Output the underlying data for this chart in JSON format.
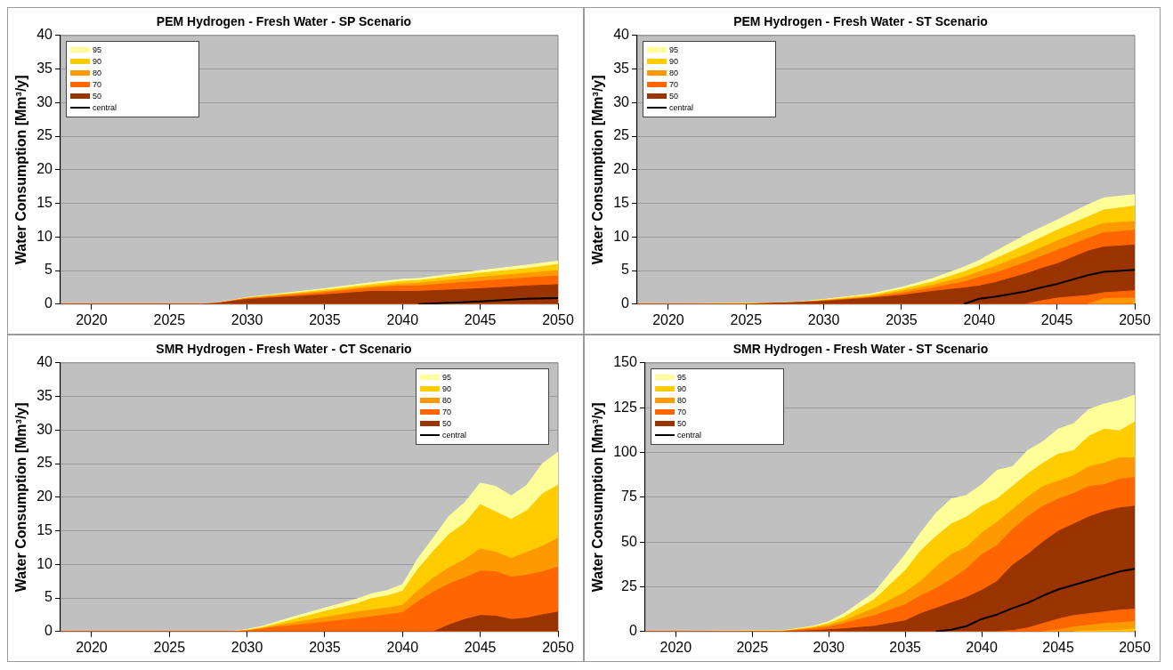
{
  "chart_data": [
    {
      "type": "area",
      "title": "PEM Hydrogen - Fresh Water - SP Scenario",
      "ylabel": "Water Consumption [Mm³/y]",
      "x": [
        2018,
        2027,
        2028,
        2030,
        2035,
        2038,
        2040,
        2041,
        2045,
        2048,
        2050
      ],
      "xlim": [
        2018,
        2050
      ],
      "xticks": [
        2020,
        2025,
        2030,
        2035,
        2040,
        2045,
        2050
      ],
      "ylim": [
        0,
        40
      ],
      "yticks": [
        0,
        5,
        10,
        15,
        20,
        25,
        30,
        35,
        40
      ],
      "grid": "y",
      "legend": "top left",
      "marker": "none",
      "line_style": "solid",
      "series": [
        {
          "name": "95",
          "type": "area",
          "color": "#ffff99",
          "values": [
            0,
            0,
            0.1,
            1.0,
            2.3,
            3.2,
            3.7,
            3.8,
            5.0,
            5.8,
            6.4
          ]
        },
        {
          "name": "90",
          "type": "area",
          "color": "#ffcc00",
          "values": [
            0,
            0,
            0.1,
            0.9,
            2.1,
            2.9,
            3.4,
            3.5,
            4.6,
            5.3,
            5.9
          ]
        },
        {
          "name": "80",
          "type": "area",
          "color": "#ff9900",
          "values": [
            0,
            0,
            0.1,
            0.9,
            1.9,
            2.6,
            3.0,
            3.1,
            4.0,
            4.6,
            5.0
          ]
        },
        {
          "name": "70",
          "type": "area",
          "color": "#ff6600",
          "values": [
            0,
            0,
            0.1,
            0.8,
            1.7,
            2.4,
            2.7,
            2.7,
            3.4,
            3.9,
            4.2
          ]
        },
        {
          "name": "50",
          "type": "area",
          "color": "#993300",
          "values": [
            0,
            0,
            0.1,
            0.7,
            1.4,
            1.9,
            1.9,
            1.9,
            2.3,
            2.7,
            2.9
          ]
        },
        {
          "name": "central",
          "type": "line",
          "color": "#000000",
          "values": [
            null,
            null,
            null,
            null,
            null,
            null,
            null,
            0,
            0.4,
            0.8,
            0.9
          ]
        }
      ]
    },
    {
      "type": "area",
      "title": "PEM Hydrogen - Fresh Water - ST Scenario",
      "ylabel": "Water Consumption [Mm³/y]",
      "x": [
        2018,
        2025,
        2028,
        2030,
        2033,
        2035,
        2037,
        2039,
        2040,
        2041,
        2043,
        2044,
        2045,
        2047,
        2048,
        2050
      ],
      "xlim": [
        2018,
        2050
      ],
      "xticks": [
        2020,
        2025,
        2030,
        2035,
        2040,
        2045,
        2050
      ],
      "ylim": [
        0,
        40
      ],
      "yticks": [
        0,
        5,
        10,
        15,
        20,
        25,
        30,
        35,
        40
      ],
      "grid": "y",
      "legend": "top left",
      "marker": "none",
      "line_style": "solid",
      "series": [
        {
          "name": "95",
          "type": "area",
          "color": "#ffff99",
          "values": [
            0,
            0.1,
            0.2,
            0.7,
            1.5,
            2.5,
            3.8,
            5.5,
            6.5,
            7.8,
            10.3,
            11.4,
            12.5,
            14.8,
            15.8,
            16.3
          ]
        },
        {
          "name": "90",
          "type": "area",
          "color": "#ffcc00",
          "values": [
            0,
            0.1,
            0.2,
            0.6,
            1.3,
            2.2,
            3.3,
            4.8,
            5.7,
            6.7,
            8.8,
            9.9,
            11.0,
            13.0,
            14.0,
            14.6
          ]
        },
        {
          "name": "80",
          "type": "area",
          "color": "#ff9900",
          "values": [
            0,
            0,
            0.2,
            0.5,
            1.1,
            1.9,
            2.8,
            4.0,
            4.8,
            5.6,
            7.4,
            8.4,
            9.4,
            11.2,
            12.0,
            12.3
          ]
        },
        {
          "name": "70",
          "type": "area",
          "color": "#ff6600",
          "values": [
            0,
            0,
            0.2,
            0.5,
            1.0,
            1.6,
            2.4,
            3.3,
            4.0,
            4.6,
            6.2,
            7.1,
            8.0,
            9.8,
            10.6,
            11.0
          ]
        },
        {
          "name": "50",
          "type": "area",
          "color": "#993300",
          "values": [
            0,
            0,
            0.2,
            0.4,
            0.9,
            1.3,
            1.9,
            2.4,
            2.7,
            3.2,
            4.5,
            5.3,
            6.0,
            7.9,
            8.5,
            8.8
          ]
        },
        {
          "type": "area",
          "color": "#fe6600",
          "values": [
            null,
            null,
            null,
            null,
            null,
            null,
            null,
            null,
            null,
            null,
            0,
            0.5,
            0.9,
            1.3,
            1.7,
            2.0
          ]
        },
        {
          "type": "area",
          "color": "#fe9900",
          "values": [
            null,
            null,
            null,
            null,
            null,
            null,
            null,
            null,
            null,
            null,
            null,
            null,
            null,
            0,
            0.8,
            0.9
          ]
        },
        {
          "name": "central",
          "type": "line",
          "color": "#000000",
          "values": [
            null,
            null,
            null,
            null,
            null,
            null,
            null,
            0,
            0.8,
            1.1,
            1.9,
            2.5,
            3.0,
            4.3,
            4.8,
            5.1
          ]
        }
      ]
    },
    {
      "type": "area",
      "title": "SMR Hydrogen - Fresh Water - CT Scenario",
      "ylabel": "Water Consumption [Mm³/y]",
      "x": [
        2018,
        2029,
        2030,
        2031,
        2032,
        2033,
        2035,
        2037,
        2038,
        2039,
        2040,
        2041,
        2042,
        2043,
        2044,
        2045,
        2046,
        2047,
        2048,
        2049,
        2050
      ],
      "xlim": [
        2018,
        2050
      ],
      "xticks": [
        2020,
        2025,
        2030,
        2035,
        2040,
        2045,
        2050
      ],
      "ylim": [
        0,
        40
      ],
      "yticks": [
        0,
        5,
        10,
        15,
        20,
        25,
        30,
        35,
        40
      ],
      "grid": "y",
      "legend": "top right",
      "marker": "none",
      "line_style": "solid",
      "series": [
        {
          "name": "95",
          "type": "area",
          "color": "#ffff99",
          "values": [
            0,
            0,
            0.3,
            0.8,
            1.5,
            2.2,
            3.5,
            4.8,
            5.6,
            6.1,
            7.0,
            10.9,
            14.0,
            17.2,
            19.2,
            22.1,
            21.6,
            20.2,
            21.8,
            25.0,
            26.7
          ]
        },
        {
          "name": "90",
          "type": "area",
          "color": "#ffcc00",
          "values": [
            0,
            0,
            0.2,
            0.6,
            1.2,
            1.8,
            3.0,
            4.1,
            4.9,
            5.3,
            6.0,
            9.3,
            12.0,
            14.5,
            16.1,
            18.9,
            17.8,
            16.7,
            18.0,
            20.5,
            21.8
          ]
        },
        {
          "name": "80",
          "type": "area",
          "color": "#ff9900",
          "values": [
            0,
            0,
            0.1,
            0.5,
            0.9,
            1.3,
            2.1,
            2.9,
            3.2,
            3.5,
            3.9,
            6.1,
            8.0,
            9.5,
            10.7,
            12.3,
            11.8,
            10.9,
            11.8,
            12.7,
            13.9
          ]
        },
        {
          "name": "70",
          "type": "area",
          "color": "#ff6600",
          "values": [
            0,
            0,
            0.1,
            0.4,
            0.7,
            0.9,
            1.4,
            1.9,
            2.2,
            2.5,
            2.8,
            4.5,
            5.9,
            7.1,
            8.0,
            9.0,
            8.9,
            8.1,
            8.4,
            8.9,
            9.6
          ]
        },
        {
          "name": "50",
          "type": "area",
          "color": "#993300",
          "values": [
            0,
            0,
            0,
            0,
            0,
            0,
            0,
            0,
            0,
            0,
            0,
            0,
            0,
            1.0,
            1.8,
            2.4,
            2.3,
            1.8,
            2.0,
            2.5,
            2.9
          ]
        },
        {
          "name": "central",
          "type": "line",
          "color": "#000000",
          "values": [
            null,
            null,
            null,
            null,
            null,
            null,
            null,
            null,
            null,
            null,
            null,
            null,
            null,
            null,
            null,
            null,
            null,
            null,
            null,
            null,
            null
          ]
        }
      ]
    },
    {
      "type": "area",
      "title": "SMR Hydrogen - Fresh Water - ST Scenario",
      "ylabel": "Water Consumption [Mm³/y]",
      "x": [
        2018,
        2027,
        2029,
        2030,
        2031,
        2033,
        2035,
        2036,
        2037,
        2038,
        2039,
        2040,
        2041,
        2042,
        2043,
        2044,
        2045,
        2046,
        2047,
        2048,
        2049,
        2050
      ],
      "xlim": [
        2018,
        2050
      ],
      "xticks": [
        2020,
        2025,
        2030,
        2035,
        2040,
        2045,
        2050
      ],
      "ylim": [
        0,
        150
      ],
      "yticks": [
        0,
        25,
        50,
        75,
        100,
        125,
        150
      ],
      "grid": "y",
      "legend": "top left",
      "marker": "none",
      "line_style": "solid",
      "series": [
        {
          "name": "95",
          "type": "area",
          "color": "#ffff99",
          "values": [
            0,
            0.5,
            3,
            5.5,
            10,
            22,
            43,
            55,
            66,
            74,
            76,
            82,
            90,
            92,
            101,
            106,
            113,
            116,
            124,
            127,
            129,
            132
          ]
        },
        {
          "name": "90",
          "type": "area",
          "color": "#ffcc00",
          "values": [
            0,
            0.3,
            2.5,
            4.5,
            8,
            18,
            34,
            45,
            53,
            60,
            64,
            70,
            74,
            81,
            88,
            94,
            99,
            101,
            109,
            113,
            112,
            117
          ]
        },
        {
          "name": "80",
          "type": "area",
          "color": "#ff9900",
          "values": [
            0,
            0.2,
            2,
            3.5,
            6,
            13,
            22,
            28,
            36,
            43,
            47,
            55,
            61,
            68,
            75,
            81,
            84,
            87,
            92,
            94,
            97,
            97
          ]
        },
        {
          "name": "70",
          "type": "area",
          "color": "#ff6600",
          "values": [
            0,
            0.1,
            1.5,
            2.5,
            4.5,
            9,
            15,
            20,
            24,
            29,
            35,
            43,
            48,
            57,
            64,
            70,
            74,
            77,
            81,
            82,
            85,
            86
          ]
        },
        {
          "name": "50",
          "type": "area",
          "color": "#993300",
          "values": [
            0,
            0,
            0.5,
            1,
            1.5,
            3,
            6,
            10,
            13,
            16,
            19,
            23,
            28,
            37,
            43,
            50,
            56,
            60,
            64,
            67,
            69,
            70
          ]
        },
        {
          "type": "area",
          "color": "#fe6600",
          "values": [
            null,
            null,
            null,
            null,
            null,
            null,
            null,
            null,
            null,
            null,
            null,
            null,
            0,
            0.5,
            2,
            4.5,
            7,
            9,
            10,
            11,
            12,
            12.5
          ]
        },
        {
          "type": "area",
          "color": "#fe9900",
          "values": [
            null,
            null,
            null,
            null,
            null,
            null,
            null,
            null,
            null,
            null,
            null,
            null,
            null,
            null,
            null,
            0,
            1,
            2.5,
            3.5,
            4.5,
            5,
            5.5
          ]
        },
        {
          "type": "area",
          "color": "#fecc00",
          "values": [
            null,
            null,
            null,
            null,
            null,
            null,
            null,
            null,
            null,
            null,
            null,
            null,
            null,
            null,
            null,
            null,
            null,
            0,
            0.3,
            0.5,
            0.8,
            1.5
          ]
        },
        {
          "name": "central",
          "type": "line",
          "color": "#000000",
          "values": [
            null,
            null,
            null,
            null,
            null,
            null,
            null,
            null,
            0,
            1,
            3,
            7,
            9.5,
            13,
            16,
            20,
            23.5,
            26,
            28.5,
            31,
            33.5,
            35
          ]
        }
      ]
    }
  ]
}
